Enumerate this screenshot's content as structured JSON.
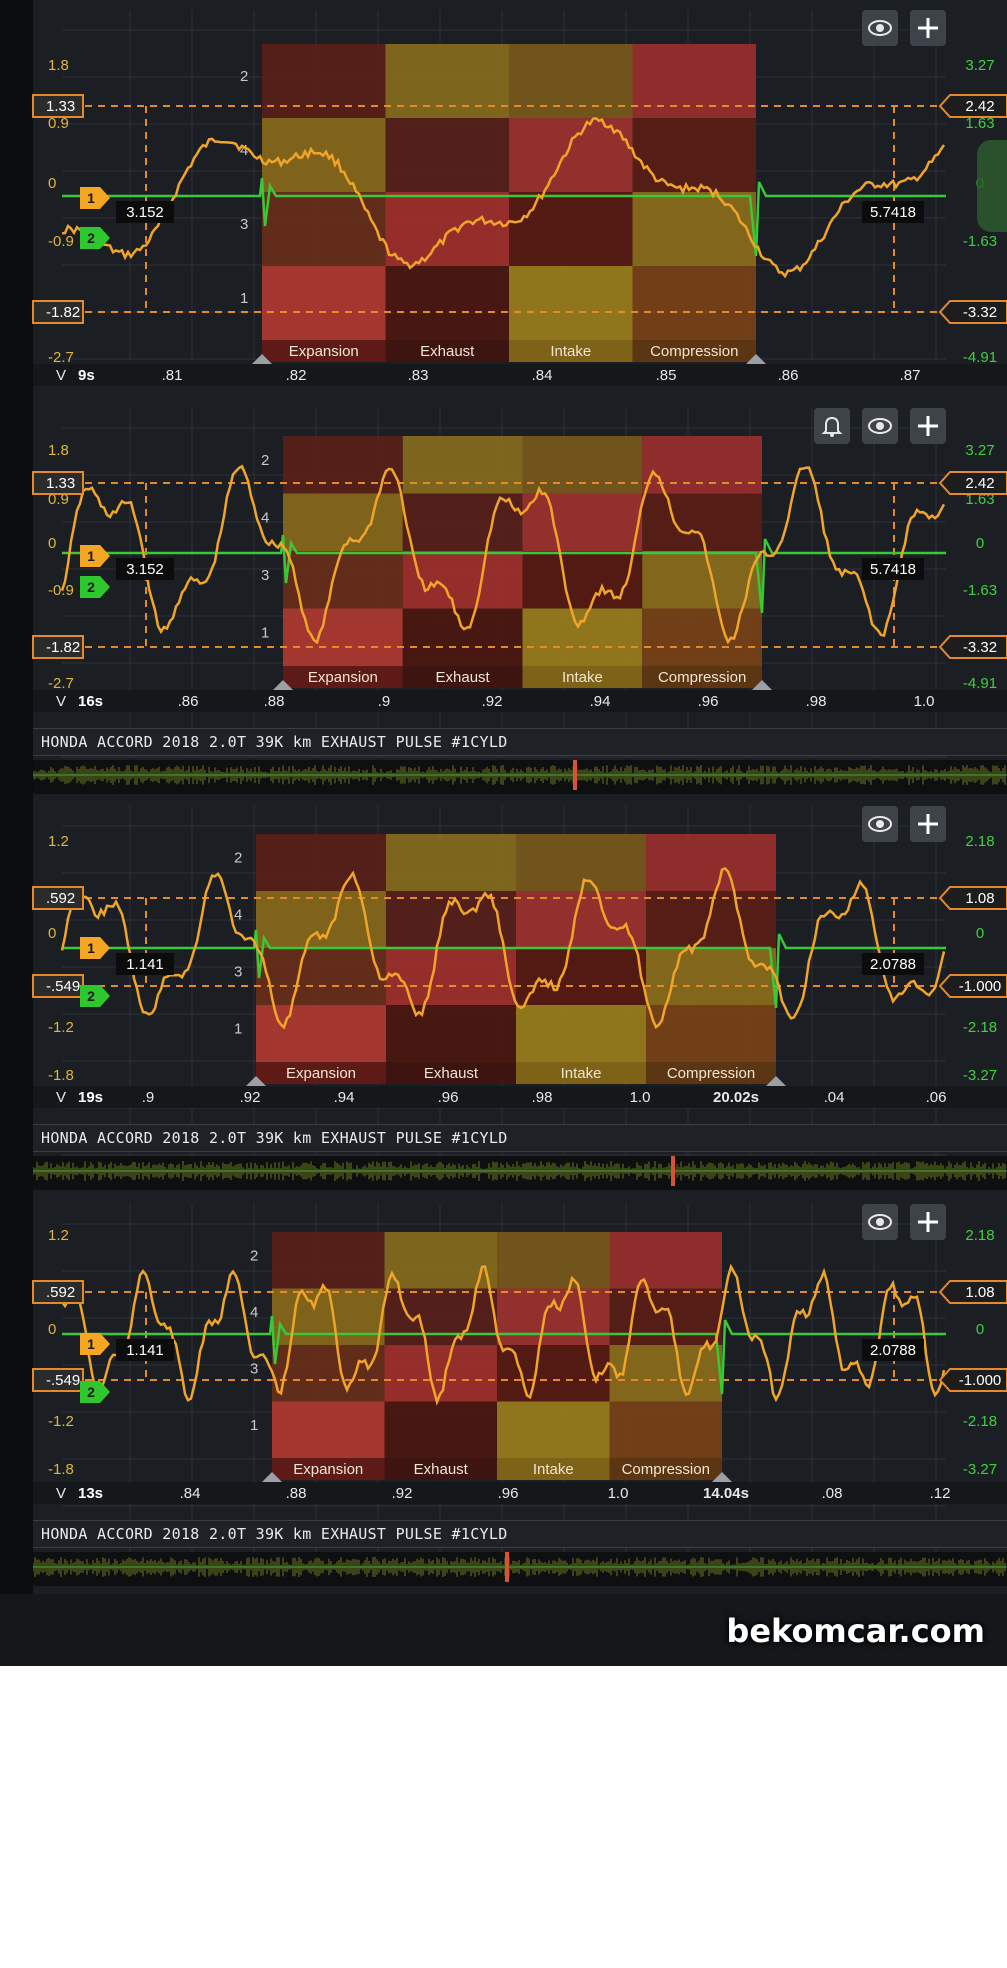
{
  "app_title": "HONDA ACCORD 2018 2.0T 39K km EXHAUST PULSE #1CYLD",
  "watermark": "bekomcar.com",
  "colors": {
    "accent_orange": "#f5a623",
    "trace_green": "#38c838",
    "background": "#15181b"
  },
  "panels": [
    {
      "id": "p1",
      "buttons": [
        "eye-icon",
        "plus-icon"
      ],
      "left_ticks": [
        "1.8",
        "0.9",
        "0",
        "-0.9",
        "-2.7"
      ],
      "right_ticks": [
        "3.27",
        "1.63",
        "0",
        "-1.63",
        "-4.91"
      ],
      "left_cursors": [
        "1.33",
        "-1.82"
      ],
      "right_cursors": [
        "2.42",
        "-3.32"
      ],
      "left_readout": "3.152",
      "right_readout": "5.7418",
      "channel_markers": [
        "1",
        "2"
      ],
      "v_label": "V",
      "time_label": "9s",
      "x_ticks": [
        ".81",
        ".82",
        ".83",
        ".84",
        ".85",
        ".86",
        ".87"
      ],
      "strokes": [
        "Expansion",
        "Exhaust",
        "Intake",
        "Compression"
      ],
      "cylinder_rows": [
        "2",
        "4",
        "3",
        "1"
      ],
      "has_side_scroll": true,
      "has_bell": false
    },
    {
      "id": "p2",
      "buttons": [
        "bell-icon",
        "eye-icon",
        "plus-icon"
      ],
      "left_ticks": [
        "1.8",
        "0.9",
        "0",
        "-0.9",
        "-2.7"
      ],
      "right_ticks": [
        "3.27",
        "1.63",
        "0",
        "-1.63",
        "-4.91"
      ],
      "left_cursors": [
        "1.33",
        "-1.82"
      ],
      "right_cursors": [
        "2.42",
        "-3.32"
      ],
      "left_readout": "3.152",
      "right_readout": "5.7418",
      "channel_markers": [
        "1",
        "2"
      ],
      "v_label": "V",
      "time_label": "16s",
      "x_ticks": [
        ".86",
        ".88",
        ".9",
        ".92",
        ".94",
        ".96",
        ".98",
        "1.0"
      ],
      "strokes": [
        "Expansion",
        "Exhaust",
        "Intake",
        "Compression"
      ],
      "cylinder_rows": [
        "2",
        "4",
        "3",
        "1"
      ],
      "has_side_scroll": false,
      "has_bell": true
    },
    {
      "id": "p3",
      "buttons": [
        "eye-icon",
        "plus-icon"
      ],
      "left_ticks": [
        "1.2",
        "0",
        "-1.2",
        "-1.8"
      ],
      "right_ticks": [
        "2.18",
        "0",
        "-2.18",
        "-3.27"
      ],
      "left_cursors": [
        ".592",
        "-.549"
      ],
      "right_cursors": [
        "1.08",
        "-1.000"
      ],
      "left_readout": "1.141",
      "right_readout": "2.0788",
      "channel_markers": [
        "1",
        "2"
      ],
      "v_label": "V",
      "time_label": "19s",
      "x_ticks": [
        ".9",
        ".92",
        ".94",
        ".96",
        ".98",
        "1.0",
        "20.02s",
        ".04",
        ".06"
      ],
      "strokes": [
        "Expansion",
        "Exhaust",
        "Intake",
        "Compression"
      ],
      "cylinder_rows": [
        "2",
        "4",
        "3",
        "1"
      ],
      "has_side_scroll": false,
      "has_bell": false
    },
    {
      "id": "p4",
      "buttons": [
        "eye-icon",
        "plus-icon"
      ],
      "left_ticks": [
        "1.2",
        "0",
        "-1.2",
        "-1.8"
      ],
      "right_ticks": [
        "2.18",
        "0",
        "-2.18",
        "-3.27"
      ],
      "left_cursors": [
        ".592",
        "-.549"
      ],
      "right_cursors": [
        "1.08",
        "-1.000"
      ],
      "left_readout": "1.141",
      "right_readout": "2.0788",
      "channel_markers": [
        "1",
        "2"
      ],
      "v_label": "V",
      "time_label": "13s",
      "x_ticks": [
        ".84",
        ".88",
        ".92",
        ".96",
        "1.0",
        "14.04s",
        ".08",
        ".12"
      ],
      "strokes": [
        "Expansion",
        "Exhaust",
        "Intake",
        "Compression"
      ],
      "cylinder_rows": [
        "2",
        "4",
        "3",
        "1"
      ],
      "has_side_scroll": false,
      "has_bell": false
    }
  ]
}
